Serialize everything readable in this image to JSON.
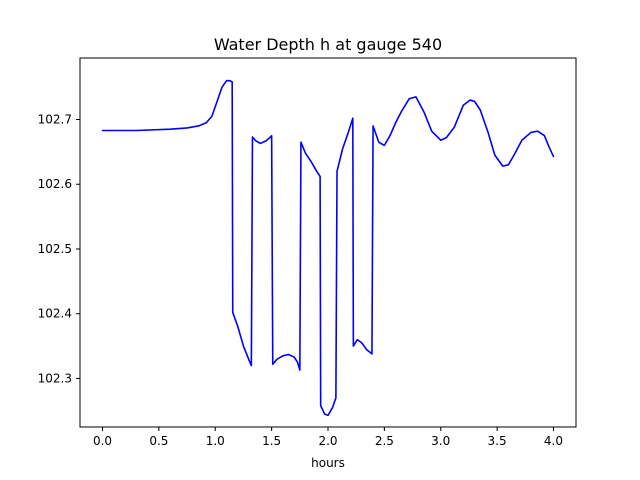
{
  "chart_data": {
    "type": "line",
    "title": "Water Depth h at gauge 540",
    "xlabel": "hours",
    "ylabel": "",
    "xlim": [
      -0.2,
      4.2
    ],
    "ylim": [
      102.225,
      102.795
    ],
    "x_ticks": [
      0.0,
      0.5,
      1.0,
      1.5,
      2.0,
      2.5,
      3.0,
      3.5,
      4.0
    ],
    "x_tick_labels": [
      "0.0",
      "0.5",
      "1.0",
      "1.5",
      "2.0",
      "2.5",
      "3.0",
      "3.5",
      "4.0"
    ],
    "y_ticks": [
      102.3,
      102.4,
      102.5,
      102.6,
      102.7
    ],
    "y_tick_labels": [
      "102.3",
      "102.4",
      "102.5",
      "102.6",
      "102.7"
    ],
    "grid": false,
    "legend": "none",
    "colors": {
      "line": "#0000ff",
      "axes": "#000000",
      "background": "#ffffff"
    },
    "series": [
      {
        "x": [
          0.0,
          0.3,
          0.6,
          0.75,
          0.85,
          0.92,
          0.97,
          1.02,
          1.06,
          1.1,
          1.13,
          1.15,
          1.155,
          1.2,
          1.25,
          1.3,
          1.32,
          1.33,
          1.36,
          1.4,
          1.45,
          1.49,
          1.5,
          1.51,
          1.55,
          1.6,
          1.65,
          1.7,
          1.73,
          1.75,
          1.76,
          1.8,
          1.85,
          1.9,
          1.93,
          1.935,
          1.97,
          2.0,
          2.04,
          2.07,
          2.08,
          2.13,
          2.18,
          2.22,
          2.225,
          2.26,
          2.3,
          2.34,
          2.39,
          2.4,
          2.45,
          2.5,
          2.55,
          2.6,
          2.65,
          2.72,
          2.78,
          2.85,
          2.92,
          3.0,
          3.05,
          3.12,
          3.2,
          3.26,
          3.3,
          3.35,
          3.42,
          3.48,
          3.55,
          3.6,
          3.65,
          3.72,
          3.8,
          3.86,
          3.92,
          3.96,
          4.0
        ],
        "y": [
          102.683,
          102.683,
          102.685,
          102.687,
          102.69,
          102.695,
          102.705,
          102.73,
          102.75,
          102.76,
          102.76,
          102.758,
          102.402,
          102.38,
          102.35,
          102.328,
          102.32,
          102.673,
          102.667,
          102.663,
          102.667,
          102.673,
          102.675,
          102.322,
          102.33,
          102.335,
          102.337,
          102.333,
          102.325,
          102.313,
          102.665,
          102.648,
          102.635,
          102.62,
          102.612,
          102.258,
          102.245,
          102.243,
          102.255,
          102.27,
          102.62,
          102.655,
          102.68,
          102.702,
          102.35,
          102.36,
          102.355,
          102.345,
          102.338,
          102.69,
          102.665,
          102.66,
          102.675,
          102.695,
          102.712,
          102.732,
          102.735,
          102.712,
          102.682,
          102.668,
          102.672,
          102.688,
          102.722,
          102.73,
          102.728,
          102.715,
          102.68,
          102.645,
          102.628,
          102.63,
          102.645,
          102.668,
          102.68,
          102.682,
          102.675,
          102.658,
          102.643
        ]
      }
    ]
  }
}
